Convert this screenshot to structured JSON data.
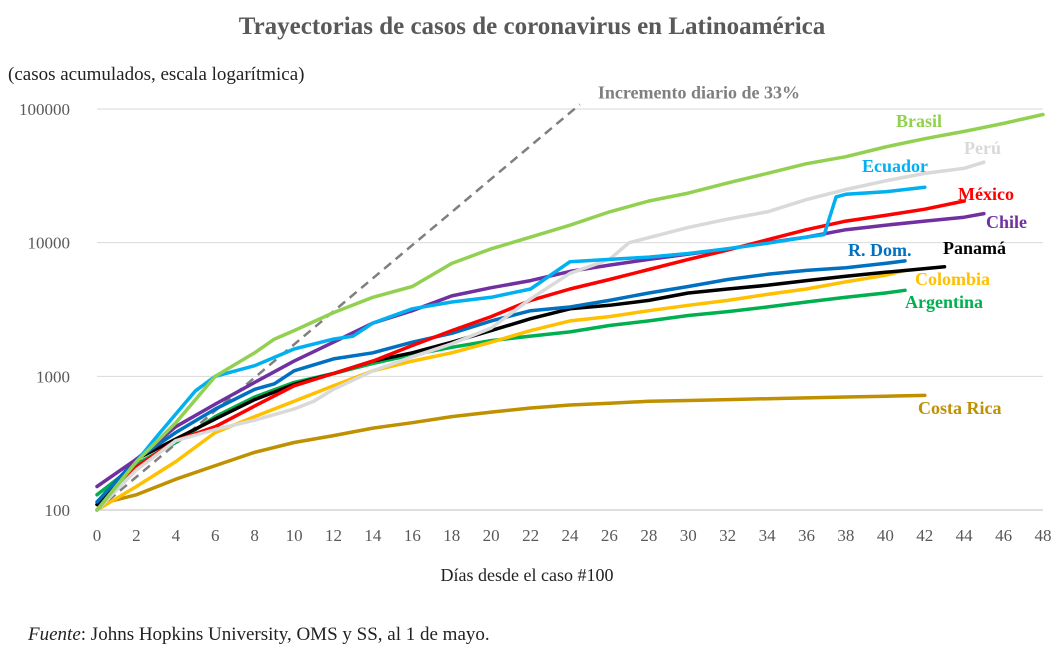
{
  "chart_data": {
    "type": "line",
    "title": "Trayectorias de casos de coronavirus en Latinoamérica",
    "subtitle": "(casos acumulados, escala logarítmica)",
    "xlabel": "Días desde el caso #100",
    "ylabel": "casos acumulados",
    "yscale": "log",
    "ylim": [
      100,
      100000
    ],
    "xlim": [
      0,
      48
    ],
    "xticks": [
      0,
      2,
      4,
      6,
      8,
      10,
      12,
      14,
      16,
      18,
      20,
      22,
      24,
      26,
      28,
      30,
      32,
      34,
      36,
      38,
      40,
      42,
      44,
      46,
      48
    ],
    "yticks": [
      {
        "value": 100,
        "label": "100"
      },
      {
        "value": 1000,
        "label": "1000"
      },
      {
        "value": 10000,
        "label": "10000"
      },
      {
        "value": 100000,
        "label": "100000"
      }
    ],
    "grid": "horizontal",
    "reference_line": {
      "label": "Incremento diario de 33%",
      "daily_growth": 0.33,
      "start": [
        0,
        100
      ],
      "end_x": 24.5,
      "color": "#7f7f7f",
      "style": "dashed"
    },
    "series": [
      {
        "name": "Brasil",
        "color": "#92d050",
        "points": [
          [
            0,
            100
          ],
          [
            2,
            230
          ],
          [
            4,
            450
          ],
          [
            6,
            1000
          ],
          [
            8,
            1500
          ],
          [
            9,
            1900
          ],
          [
            10,
            2200
          ],
          [
            12,
            3000
          ],
          [
            14,
            3900
          ],
          [
            16,
            4700
          ],
          [
            18,
            7000
          ],
          [
            20,
            9000
          ],
          [
            22,
            11000
          ],
          [
            24,
            13500
          ],
          [
            26,
            17000
          ],
          [
            28,
            20500
          ],
          [
            30,
            23500
          ],
          [
            32,
            28000
          ],
          [
            34,
            33000
          ],
          [
            36,
            39000
          ],
          [
            38,
            44000
          ],
          [
            40,
            52000
          ],
          [
            42,
            60000
          ],
          [
            44,
            68000
          ],
          [
            46,
            78000
          ],
          [
            48,
            91000
          ]
        ]
      },
      {
        "name": "Perú",
        "color": "#d9d9d9",
        "points": [
          [
            0,
            100
          ],
          [
            2,
            200
          ],
          [
            4,
            330
          ],
          [
            6,
            400
          ],
          [
            8,
            470
          ],
          [
            10,
            570
          ],
          [
            11,
            650
          ],
          [
            12,
            800
          ],
          [
            14,
            1100
          ],
          [
            16,
            1400
          ],
          [
            18,
            1750
          ],
          [
            20,
            2300
          ],
          [
            22,
            3800
          ],
          [
            24,
            5900
          ],
          [
            26,
            7500
          ],
          [
            27,
            10000
          ],
          [
            30,
            13000
          ],
          [
            32,
            15000
          ],
          [
            34,
            17000
          ],
          [
            36,
            21000
          ],
          [
            38,
            25000
          ],
          [
            40,
            29000
          ],
          [
            42,
            33000
          ],
          [
            44,
            36000
          ],
          [
            45,
            40000
          ]
        ]
      },
      {
        "name": "Ecuador",
        "color": "#00b0f0",
        "points": [
          [
            0,
            100
          ],
          [
            2,
            230
          ],
          [
            3,
            350
          ],
          [
            5,
            780
          ],
          [
            6,
            1000
          ],
          [
            8,
            1200
          ],
          [
            10,
            1600
          ],
          [
            12,
            1900
          ],
          [
            13,
            2000
          ],
          [
            14,
            2500
          ],
          [
            16,
            3200
          ],
          [
            18,
            3600
          ],
          [
            20,
            3900
          ],
          [
            22,
            4500
          ],
          [
            24,
            7200
          ],
          [
            26,
            7500
          ],
          [
            28,
            7800
          ],
          [
            30,
            8300
          ],
          [
            32,
            9000
          ],
          [
            34,
            9900
          ],
          [
            36,
            11000
          ],
          [
            36.9,
            11500
          ],
          [
            37.5,
            22000
          ],
          [
            38,
            23000
          ],
          [
            40,
            24000
          ],
          [
            42,
            26000
          ]
        ]
      },
      {
        "name": "México",
        "color": "#ff0000",
        "points": [
          [
            0,
            100
          ],
          [
            2,
            210
          ],
          [
            4,
            330
          ],
          [
            6,
            420
          ],
          [
            8,
            600
          ],
          [
            10,
            850
          ],
          [
            12,
            1050
          ],
          [
            14,
            1300
          ],
          [
            16,
            1700
          ],
          [
            18,
            2200
          ],
          [
            20,
            2800
          ],
          [
            22,
            3700
          ],
          [
            24,
            4500
          ],
          [
            26,
            5300
          ],
          [
            28,
            6300
          ],
          [
            30,
            7500
          ],
          [
            32,
            8800
          ],
          [
            34,
            10500
          ],
          [
            36,
            12500
          ],
          [
            38,
            14500
          ],
          [
            40,
            16000
          ],
          [
            42,
            17800
          ],
          [
            44,
            20500
          ]
        ]
      },
      {
        "name": "Chile",
        "color": "#7030a0",
        "points": [
          [
            0,
            150
          ],
          [
            2,
            240
          ],
          [
            4,
            420
          ],
          [
            6,
            620
          ],
          [
            8,
            900
          ],
          [
            10,
            1300
          ],
          [
            12,
            1800
          ],
          [
            14,
            2500
          ],
          [
            16,
            3100
          ],
          [
            18,
            4000
          ],
          [
            20,
            4600
          ],
          [
            22,
            5200
          ],
          [
            24,
            6100
          ],
          [
            26,
            6800
          ],
          [
            28,
            7500
          ],
          [
            30,
            8200
          ],
          [
            32,
            9000
          ],
          [
            34,
            10000
          ],
          [
            36,
            11000
          ],
          [
            38,
            12500
          ],
          [
            40,
            13500
          ],
          [
            42,
            14500
          ],
          [
            44,
            15500
          ],
          [
            45,
            16500
          ]
        ]
      },
      {
        "name": "R. Dom.",
        "color": "#0070c0",
        "points": [
          [
            0,
            115
          ],
          [
            2,
            240
          ],
          [
            4,
            380
          ],
          [
            6,
            570
          ],
          [
            8,
            800
          ],
          [
            9,
            880
          ],
          [
            10,
            1100
          ],
          [
            12,
            1350
          ],
          [
            14,
            1500
          ],
          [
            16,
            1800
          ],
          [
            18,
            2100
          ],
          [
            20,
            2600
          ],
          [
            22,
            3100
          ],
          [
            24,
            3300
          ],
          [
            26,
            3700
          ],
          [
            28,
            4200
          ],
          [
            30,
            4700
          ],
          [
            32,
            5300
          ],
          [
            34,
            5800
          ],
          [
            36,
            6200
          ],
          [
            38,
            6500
          ],
          [
            40,
            7000
          ],
          [
            41,
            7300
          ]
        ]
      },
      {
        "name": "Panamá",
        "color": "#000000",
        "points": [
          [
            0,
            110
          ],
          [
            2,
            240
          ],
          [
            4,
            340
          ],
          [
            6,
            480
          ],
          [
            8,
            670
          ],
          [
            10,
            870
          ],
          [
            12,
            1050
          ],
          [
            14,
            1300
          ],
          [
            16,
            1500
          ],
          [
            18,
            1800
          ],
          [
            20,
            2200
          ],
          [
            22,
            2700
          ],
          [
            24,
            3200
          ],
          [
            26,
            3400
          ],
          [
            28,
            3700
          ],
          [
            30,
            4200
          ],
          [
            32,
            4500
          ],
          [
            34,
            4800
          ],
          [
            36,
            5200
          ],
          [
            38,
            5600
          ],
          [
            40,
            6000
          ],
          [
            42,
            6400
          ],
          [
            43,
            6600
          ]
        ]
      },
      {
        "name": "Colombia",
        "color": "#ffc000",
        "points": [
          [
            0,
            100
          ],
          [
            2,
            150
          ],
          [
            4,
            230
          ],
          [
            6,
            380
          ],
          [
            8,
            500
          ],
          [
            10,
            650
          ],
          [
            12,
            850
          ],
          [
            14,
            1100
          ],
          [
            16,
            1300
          ],
          [
            18,
            1500
          ],
          [
            20,
            1800
          ],
          [
            22,
            2200
          ],
          [
            24,
            2600
          ],
          [
            26,
            2800
          ],
          [
            28,
            3100
          ],
          [
            30,
            3400
          ],
          [
            32,
            3700
          ],
          [
            34,
            4100
          ],
          [
            36,
            4500
          ],
          [
            38,
            5100
          ],
          [
            40,
            5700
          ],
          [
            41,
            6200
          ]
        ]
      },
      {
        "name": "Argentina",
        "color": "#00b050",
        "points": [
          [
            0,
            130
          ],
          [
            2,
            220
          ],
          [
            4,
            320
          ],
          [
            6,
            500
          ],
          [
            8,
            700
          ],
          [
            10,
            900
          ],
          [
            12,
            1050
          ],
          [
            14,
            1250
          ],
          [
            16,
            1450
          ],
          [
            18,
            1650
          ],
          [
            20,
            1850
          ],
          [
            22,
            2000
          ],
          [
            24,
            2150
          ],
          [
            26,
            2400
          ],
          [
            28,
            2600
          ],
          [
            30,
            2850
          ],
          [
            32,
            3050
          ],
          [
            34,
            3300
          ],
          [
            36,
            3600
          ],
          [
            38,
            3900
          ],
          [
            40,
            4200
          ],
          [
            41,
            4400
          ]
        ]
      },
      {
        "name": "Costa Rica",
        "color": "#bf9000",
        "points": [
          [
            0,
            110
          ],
          [
            2,
            130
          ],
          [
            4,
            170
          ],
          [
            6,
            215
          ],
          [
            8,
            270
          ],
          [
            10,
            320
          ],
          [
            12,
            360
          ],
          [
            14,
            410
          ],
          [
            16,
            450
          ],
          [
            18,
            500
          ],
          [
            20,
            540
          ],
          [
            22,
            580
          ],
          [
            24,
            610
          ],
          [
            26,
            630
          ],
          [
            28,
            650
          ],
          [
            30,
            660
          ],
          [
            32,
            670
          ],
          [
            34,
            680
          ],
          [
            36,
            690
          ],
          [
            38,
            700
          ],
          [
            40,
            710
          ],
          [
            42,
            720
          ]
        ]
      }
    ]
  },
  "source": {
    "label": "Fuente",
    "text": ": Johns Hopkins University, OMS y SS, al 1 de mayo."
  }
}
